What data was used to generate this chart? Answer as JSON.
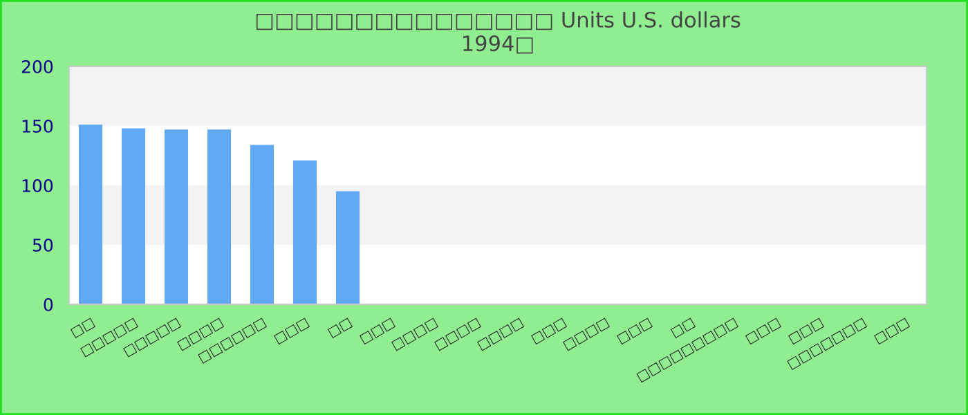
{
  "chart_data": {
    "type": "bar",
    "title": "□□□□□□□□□□□□□□□ Units U.S. dollars\n1994□",
    "categories": [
      "□□",
      "□□□□□",
      "□□□□□",
      "□□□□",
      "□□□□□□",
      "□□□",
      "□□",
      "□□□",
      "□□□□",
      "□□□□",
      "□□□□",
      "□□□",
      "□□□□",
      "□□□",
      "□□",
      "□□□□□□□□□",
      "□□□",
      "□□□",
      "□□□□□□□",
      "□□□"
    ],
    "values": [
      151,
      148,
      147,
      147,
      134,
      121,
      95,
      null,
      null,
      null,
      null,
      null,
      null,
      null,
      null,
      null,
      null,
      null,
      null,
      null
    ],
    "color": "#62a9f5",
    "ylim": [
      0,
      200
    ],
    "yticks": [
      0,
      50,
      100,
      150,
      200
    ],
    "bands": [
      {
        "axis": "y",
        "from": 150,
        "to": 200,
        "color": "#f3f3f3"
      },
      {
        "axis": "y",
        "from": 50,
        "to": 100,
        "color": "#f3f3f3"
      }
    ]
  }
}
